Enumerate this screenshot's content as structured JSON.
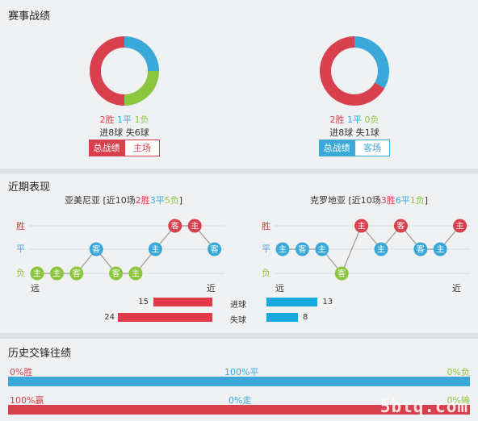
{
  "colors": {
    "win": "#d8404d",
    "draw": "#3aa8d8",
    "loss": "#8cc63f",
    "goals_bar": "#e23a4a",
    "conceded_bar": "#17a9e0"
  },
  "record": {
    "title": "赛事战绩",
    "left": {
      "donut": {
        "win": 2,
        "draw": 1,
        "loss": 1
      },
      "win_text": "2胜",
      "draw_text": "1平",
      "loss_text": "1负",
      "goals_text": "进8球",
      "conceded_text": "失6球",
      "tab_total": "总战绩",
      "tab_other": "主场"
    },
    "right": {
      "donut": {
        "win": 2,
        "draw": 1,
        "loss": 0
      },
      "win_text": "2胜",
      "draw_text": "1平",
      "loss_text": "0负",
      "goals_text": "进8球",
      "conceded_text": "失1球",
      "tab_total": "总战绩",
      "tab_other": "客场"
    }
  },
  "recent": {
    "title": "近期表现",
    "row_labels": {
      "win": "胜",
      "draw": "平",
      "loss": "负"
    },
    "far_label": "远",
    "near_label": "近",
    "left": {
      "team": "亚美尼亚",
      "summary_pre": "[近10场",
      "wins": "2胜",
      "draws": "3平",
      "losses": "5负",
      "summary_post": "]",
      "matches": [
        {
          "result": "L",
          "venue": "主"
        },
        {
          "result": "L",
          "venue": "主"
        },
        {
          "result": "L",
          "venue": "客"
        },
        {
          "result": "D",
          "venue": "客"
        },
        {
          "result": "L",
          "venue": "客"
        },
        {
          "result": "L",
          "venue": "主"
        },
        {
          "result": "D",
          "venue": "主"
        },
        {
          "result": "W",
          "venue": "客"
        },
        {
          "result": "W",
          "venue": "主"
        },
        {
          "result": "D",
          "venue": "客"
        }
      ]
    },
    "right": {
      "team": "克罗地亚",
      "summary_pre": "[近10场",
      "wins": "3胜",
      "draws": "6平",
      "losses": "1负",
      "summary_post": "]",
      "matches": [
        {
          "result": "D",
          "venue": "主"
        },
        {
          "result": "D",
          "venue": "客"
        },
        {
          "result": "D",
          "venue": "主"
        },
        {
          "result": "L",
          "venue": "客"
        },
        {
          "result": "W",
          "venue": "主"
        },
        {
          "result": "D",
          "venue": "主"
        },
        {
          "result": "W",
          "venue": "客"
        },
        {
          "result": "D",
          "venue": "客"
        },
        {
          "result": "D",
          "venue": "主"
        },
        {
          "result": "W",
          "venue": "主"
        }
      ]
    },
    "goals_label": "进球",
    "conceded_label": "失球",
    "left_goals": 15,
    "left_conceded": 24,
    "right_goals": 13,
    "right_conceded": 8
  },
  "history": {
    "title": "历史交锋往绩",
    "row1": {
      "left": "0%胜",
      "mid": "100%平",
      "right": "0%负",
      "win": 0,
      "draw": 100,
      "loss": 0
    },
    "row2": {
      "left": "100%赢",
      "mid": "0%走",
      "right": "0%输",
      "win": 100,
      "draw": 0,
      "loss": 0
    }
  },
  "watermark": "5btq.com"
}
